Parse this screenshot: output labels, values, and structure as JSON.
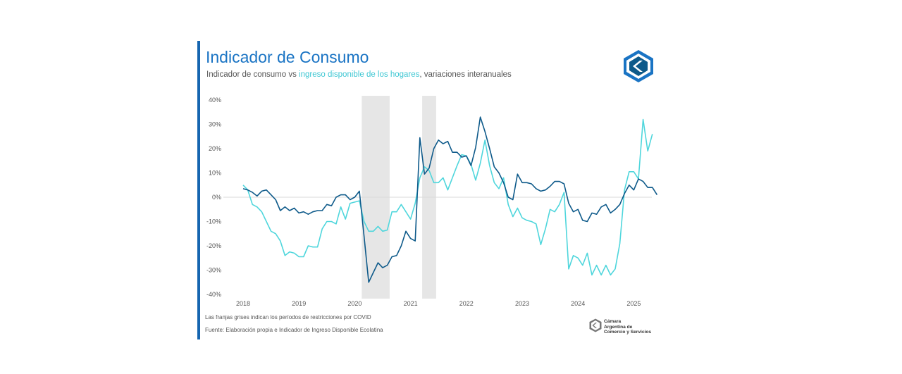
{
  "header": {
    "title": "Indicador de Consumo",
    "subtitle_pre": "Indicador de consumo vs ",
    "subtitle_hl": "ingreso disponible de los hogares",
    "subtitle_post": ", variaciones interanuales"
  },
  "notes": {
    "covid": "Las franjas grises indican los períodos de restricciones por COVID",
    "source": "Fuente: Elaboración propia e Indicador de Ingreso Disponible Ecolatina"
  },
  "org": {
    "line1": "Cámara",
    "line2": "Argentina de",
    "line3": "Comercio y Servicios"
  },
  "colors": {
    "consumo": "#0e5a8a",
    "ingreso": "#4fd6dc",
    "shade": "#e6e6e6",
    "title": "#1a74c4",
    "accent": "#1565b0"
  },
  "chart_data": {
    "type": "line",
    "yticks": [
      "40%",
      "30%",
      "20%",
      "10%",
      "0%",
      "-10%",
      "-20%",
      "-30%",
      "-40%"
    ],
    "ylim": [
      -40,
      40
    ],
    "xticks": [
      "2018",
      "2019",
      "2020",
      "2021",
      "2022",
      "2023",
      "2024",
      "2025"
    ],
    "x_start": "2018-01",
    "shaded_periods": [
      {
        "from": "2020-03",
        "to": "2020-08"
      },
      {
        "from": "2021-04",
        "to": "2021-06"
      }
    ],
    "series": [
      {
        "name": "Indicador de consumo",
        "color": "#0e5a8a",
        "values": [
          3.5,
          3,
          2,
          0.5,
          2.5,
          3,
          1,
          -1,
          -5.5,
          -4,
          -5.5,
          -4.5,
          -6.5,
          -6,
          -7,
          -6,
          -5.5,
          -5.5,
          -3,
          -3.5,
          0,
          1,
          1,
          -1,
          0,
          2.5,
          -16,
          -35,
          -31,
          -27,
          -29,
          -28,
          -24.5,
          -24,
          -20,
          -14,
          -17,
          -18,
          24.5,
          9.5,
          12,
          20,
          23.5,
          22,
          23,
          18.5,
          18.5,
          16.5,
          17,
          13,
          20.5,
          33,
          27,
          20,
          12.5,
          10,
          6,
          0,
          -1,
          9.5,
          6,
          6,
          5.5,
          3.5,
          2.5,
          3,
          4.5,
          6.5,
          6.5,
          5.5,
          -2.5,
          -6,
          -5,
          -9.5,
          -10,
          -6.5,
          -7,
          -4,
          -3,
          -6.5,
          -5,
          -3,
          1.5,
          5,
          3,
          7.5,
          6.5,
          4,
          4,
          1
        ]
      },
      {
        "name": "Ingreso disponible de los hogares",
        "color": "#4fd6dc",
        "values": [
          5,
          3,
          -3,
          -4,
          -6,
          -10,
          -14,
          -15,
          -18,
          -24,
          -22.5,
          -23,
          -24.5,
          -24.5,
          -20,
          -20.5,
          -20.5,
          -13,
          -10,
          -10,
          -11,
          -4,
          -9,
          -2.5,
          -2,
          -1.5,
          -10,
          -14,
          -14,
          -12,
          -14,
          -13.5,
          -6,
          -6,
          -3,
          -6,
          -9,
          -2.5,
          8,
          12.5,
          11,
          6,
          6,
          8,
          3,
          8,
          13,
          17.5,
          17,
          13.5,
          7,
          14,
          23.5,
          13,
          6,
          3.5,
          8,
          -3,
          -8,
          -4.5,
          -8.5,
          -9.5,
          -10,
          -11,
          -19.5,
          -13,
          -5,
          -6,
          -3,
          2,
          -29.5,
          -24,
          -25,
          -28,
          -23,
          -32,
          -28,
          -32,
          -28,
          -32,
          -29.5,
          -19,
          3,
          10.5,
          10.5,
          7.5,
          32,
          19,
          26
        ]
      }
    ]
  }
}
